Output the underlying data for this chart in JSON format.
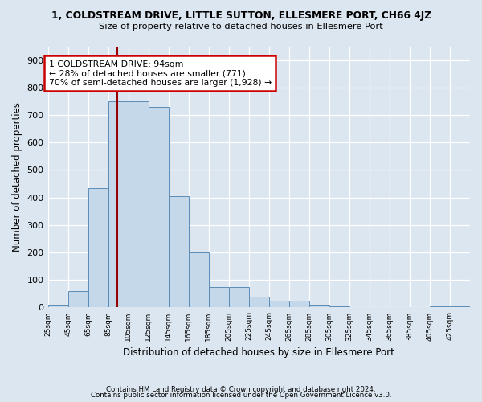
{
  "title": "1, COLDSTREAM DRIVE, LITTLE SUTTON, ELLESMERE PORT, CH66 4JZ",
  "subtitle": "Size of property relative to detached houses in Ellesmere Port",
  "xlabel": "Distribution of detached houses by size in Ellesmere Port",
  "ylabel": "Number of detached properties",
  "footnote1": "Contains HM Land Registry data © Crown copyright and database right 2024.",
  "footnote2": "Contains public sector information licensed under the Open Government Licence v3.0.",
  "annotation_line1": "1 COLDSTREAM DRIVE: 94sqm",
  "annotation_line2": "← 28% of detached houses are smaller (771)",
  "annotation_line3": "70% of semi-detached houses are larger (1,928) →",
  "property_size": 94,
  "bin_starts": [
    25,
    45,
    65,
    85,
    105,
    125,
    145,
    165,
    185,
    205,
    225,
    245,
    265,
    285,
    305,
    325,
    345,
    365,
    385,
    405,
    425
  ],
  "bar_values": [
    10,
    60,
    435,
    750,
    750,
    730,
    405,
    200,
    75,
    75,
    40,
    25,
    25,
    10,
    5,
    0,
    0,
    0,
    0,
    5,
    5
  ],
  "bar_color": "#c5d8ea",
  "bar_edge_color": "#5b8db8",
  "vline_color": "#990000",
  "ylim": [
    0,
    950
  ],
  "yticks": [
    0,
    100,
    200,
    300,
    400,
    500,
    600,
    700,
    800,
    900
  ],
  "bg_color": "#dce6f0",
  "plot_bg_color": "#dce6f0",
  "grid_color": "#ffffff",
  "annotation_box_facecolor": "#ffffff",
  "annotation_box_edgecolor": "#cc0000"
}
